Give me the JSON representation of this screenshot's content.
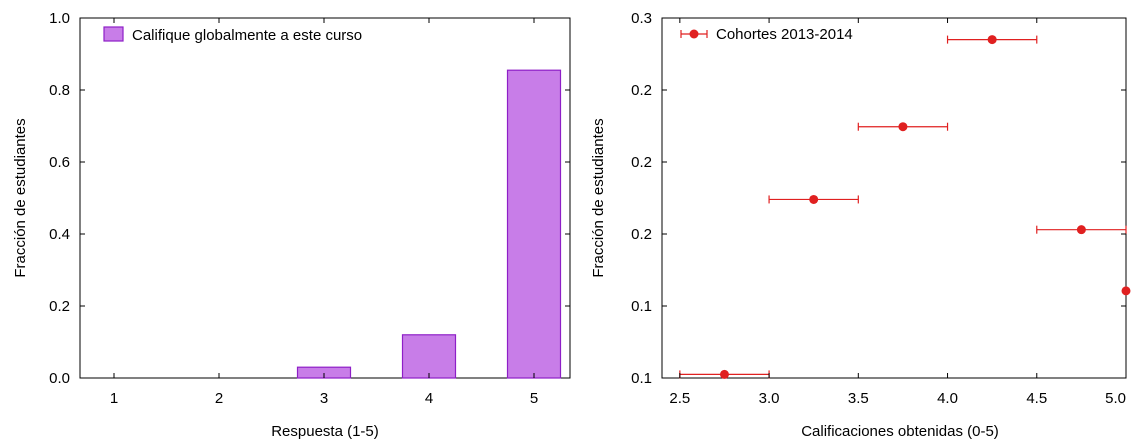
{
  "chart_data": [
    {
      "type": "bar",
      "categories": [
        "1",
        "2",
        "3",
        "4",
        "5"
      ],
      "series": [
        {
          "name": "Califique globalmente a este curso",
          "values": [
            0.0,
            0.0,
            0.03,
            0.12,
            0.855
          ]
        }
      ],
      "xlabel": "Respuesta (1-5)",
      "ylabel": "Fracción de estudiantes",
      "ylim": [
        0,
        1.0
      ],
      "yticks": [
        0.0,
        0.2,
        0.4,
        0.6,
        0.8,
        1.0
      ],
      "ytick_labels": [
        "0.0",
        "0.2",
        "0.4",
        "0.6",
        "0.8",
        "1.0"
      ],
      "xtick_labels": [
        "1",
        "2",
        "3",
        "4",
        "5"
      ],
      "legend": "top-left",
      "grid": false,
      "colors": {
        "bar_fill": "#c87de8",
        "bar_edge": "#8e1fc7"
      }
    },
    {
      "type": "scatter",
      "series": [
        {
          "name": "Cohortes 2013-2014",
          "x": [
            2.75,
            3.25,
            3.75,
            4.25,
            4.75,
            5.0
          ],
          "y": [
            0.0525,
            0.174,
            0.2245,
            0.285,
            0.153,
            0.1105
          ],
          "xerr": [
            0.25,
            0.25,
            0.25,
            0.25,
            0.25,
            0.0
          ]
        }
      ],
      "xlabel": "Calificaciones obtenidas (0-5)",
      "ylabel": "Fracción de estudiantes",
      "xlim": [
        2.4,
        5.0
      ],
      "ylim": [
        0.05,
        0.3
      ],
      "xticks": [
        2.5,
        3.0,
        3.5,
        4.0,
        4.5,
        5.0
      ],
      "xtick_labels": [
        "2.5",
        "3.0",
        "3.5",
        "4.0",
        "4.5",
        "5.0"
      ],
      "yticks": [
        0.05,
        0.1,
        0.15,
        0.2,
        0.25,
        0.3
      ],
      "ytick_labels": [
        "0.1",
        "0.1",
        "0.2",
        "0.2",
        "0.2",
        "0.3"
      ],
      "legend": "top-left",
      "grid": false,
      "colors": {
        "marker": "#e02020",
        "errorbar": "#e02020"
      }
    }
  ]
}
